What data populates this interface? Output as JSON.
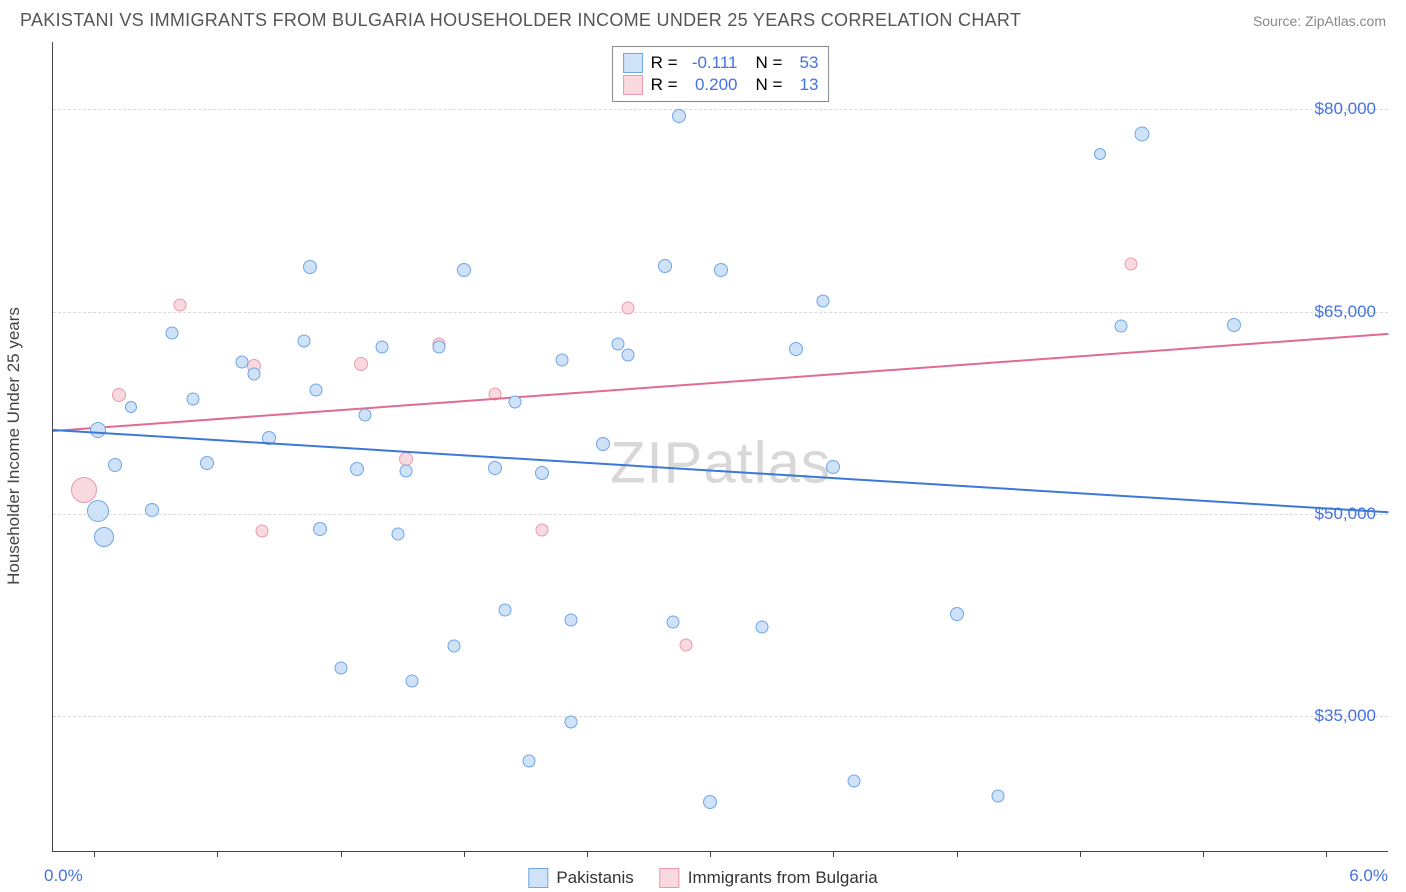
{
  "header": {
    "title": "PAKISTANI VS IMMIGRANTS FROM BULGARIA HOUSEHOLDER INCOME UNDER 25 YEARS CORRELATION CHART",
    "source": "Source: ZipAtlas.com"
  },
  "chart": {
    "type": "scatter",
    "y_axis_label": "Householder Income Under 25 years",
    "watermark": "ZIPatlas",
    "x_range_min_label": "0.0%",
    "x_range_max_label": "6.0%",
    "xlim": [
      -0.2,
      6.3
    ],
    "ylim": [
      25000,
      85000
    ],
    "y_gridlines": [
      35000,
      50000,
      65000,
      80000
    ],
    "y_tick_labels": [
      "$35,000",
      "$50,000",
      "$65,000",
      "$80,000"
    ],
    "x_ticks": [
      0.0,
      0.6,
      1.2,
      1.8,
      2.4,
      3.0,
      3.6,
      4.2,
      4.8,
      5.4,
      6.0
    ],
    "background_color": "#ffffff",
    "grid_color": "#d9d9d9",
    "series": {
      "a": {
        "label": "Pakistanis",
        "point_fill": "#cfe2f7",
        "point_stroke": "#6ea6e6",
        "line_color": "#3c78d8",
        "r_label": "R =",
        "r_value": "-0.111",
        "n_label": "N =",
        "n_value": "53",
        "trend": {
          "x1": -0.2,
          "y1": 56300,
          "x2": 6.3,
          "y2": 50200
        },
        "points": [
          {
            "x": 0.02,
            "y": 56200,
            "sz": 16
          },
          {
            "x": 0.02,
            "y": 50200,
            "sz": 22
          },
          {
            "x": 0.05,
            "y": 48300,
            "sz": 20
          },
          {
            "x": 0.1,
            "y": 53600,
            "sz": 14
          },
          {
            "x": 0.18,
            "y": 57900,
            "sz": 12
          },
          {
            "x": 0.28,
            "y": 50300,
            "sz": 14
          },
          {
            "x": 0.38,
            "y": 63400,
            "sz": 13
          },
          {
            "x": 0.48,
            "y": 58500,
            "sz": 13
          },
          {
            "x": 0.55,
            "y": 53800,
            "sz": 14
          },
          {
            "x": 0.72,
            "y": 61300,
            "sz": 13
          },
          {
            "x": 0.78,
            "y": 60400,
            "sz": 13
          },
          {
            "x": 0.85,
            "y": 55600,
            "sz": 14
          },
          {
            "x": 1.02,
            "y": 62800,
            "sz": 13
          },
          {
            "x": 1.05,
            "y": 68300,
            "sz": 14
          },
          {
            "x": 1.08,
            "y": 59200,
            "sz": 13
          },
          {
            "x": 1.1,
            "y": 48900,
            "sz": 14
          },
          {
            "x": 1.2,
            "y": 38600,
            "sz": 13
          },
          {
            "x": 1.28,
            "y": 53300,
            "sz": 14
          },
          {
            "x": 1.32,
            "y": 57300,
            "sz": 13
          },
          {
            "x": 1.4,
            "y": 62400,
            "sz": 13
          },
          {
            "x": 1.48,
            "y": 48500,
            "sz": 13
          },
          {
            "x": 1.52,
            "y": 53200,
            "sz": 13
          },
          {
            "x": 1.55,
            "y": 37600,
            "sz": 13
          },
          {
            "x": 1.68,
            "y": 62400,
            "sz": 13
          },
          {
            "x": 1.75,
            "y": 40200,
            "sz": 13
          },
          {
            "x": 1.8,
            "y": 68100,
            "sz": 14
          },
          {
            "x": 1.95,
            "y": 53400,
            "sz": 14
          },
          {
            "x": 2.0,
            "y": 42900,
            "sz": 13
          },
          {
            "x": 2.05,
            "y": 58300,
            "sz": 13
          },
          {
            "x": 2.12,
            "y": 31700,
            "sz": 13
          },
          {
            "x": 2.18,
            "y": 53000,
            "sz": 14
          },
          {
            "x": 2.28,
            "y": 61400,
            "sz": 13
          },
          {
            "x": 2.32,
            "y": 42100,
            "sz": 13
          },
          {
            "x": 2.32,
            "y": 34600,
            "sz": 13
          },
          {
            "x": 2.48,
            "y": 55200,
            "sz": 14
          },
          {
            "x": 2.55,
            "y": 62600,
            "sz": 13
          },
          {
            "x": 2.78,
            "y": 68400,
            "sz": 14
          },
          {
            "x": 2.82,
            "y": 42000,
            "sz": 13
          },
          {
            "x": 2.85,
            "y": 79500,
            "sz": 14
          },
          {
            "x": 3.0,
            "y": 28600,
            "sz": 14
          },
          {
            "x": 3.05,
            "y": 68100,
            "sz": 14
          },
          {
            "x": 3.25,
            "y": 41600,
            "sz": 13
          },
          {
            "x": 3.42,
            "y": 62200,
            "sz": 14
          },
          {
            "x": 3.55,
            "y": 65800,
            "sz": 13
          },
          {
            "x": 3.6,
            "y": 53500,
            "sz": 14
          },
          {
            "x": 3.7,
            "y": 30200,
            "sz": 13
          },
          {
            "x": 4.2,
            "y": 42600,
            "sz": 14
          },
          {
            "x": 4.4,
            "y": 29100,
            "sz": 13
          },
          {
            "x": 5.0,
            "y": 63900,
            "sz": 13
          },
          {
            "x": 5.1,
            "y": 78200,
            "sz": 15
          },
          {
            "x": 5.55,
            "y": 64000,
            "sz": 14
          },
          {
            "x": 4.9,
            "y": 76700,
            "sz": 12
          },
          {
            "x": 2.6,
            "y": 61800,
            "sz": 13
          }
        ]
      },
      "b": {
        "label": "Immigrants from Bulgaria",
        "point_fill": "#f9d9e0",
        "point_stroke": "#e99ab0",
        "line_color": "#e06c8f",
        "r_label": "R =",
        "r_value": "0.200",
        "n_label": "N =",
        "n_value": "13",
        "trend": {
          "x1": -0.2,
          "y1": 56200,
          "x2": 6.3,
          "y2": 63400
        },
        "points": [
          {
            "x": -0.05,
            "y": 51800,
            "sz": 26
          },
          {
            "x": 0.12,
            "y": 58800,
            "sz": 14
          },
          {
            "x": 0.42,
            "y": 65500,
            "sz": 13
          },
          {
            "x": 0.78,
            "y": 61000,
            "sz": 14
          },
          {
            "x": 0.82,
            "y": 48700,
            "sz": 13
          },
          {
            "x": 1.3,
            "y": 61100,
            "sz": 14
          },
          {
            "x": 1.52,
            "y": 54100,
            "sz": 14
          },
          {
            "x": 1.68,
            "y": 62600,
            "sz": 13
          },
          {
            "x": 1.95,
            "y": 58900,
            "sz": 13
          },
          {
            "x": 2.18,
            "y": 48800,
            "sz": 13
          },
          {
            "x": 2.6,
            "y": 65300,
            "sz": 13
          },
          {
            "x": 2.88,
            "y": 40300,
            "sz": 13
          },
          {
            "x": 5.05,
            "y": 68500,
            "sz": 13
          }
        ]
      }
    }
  },
  "label_fontsize": 17,
  "title_fontsize": 18
}
